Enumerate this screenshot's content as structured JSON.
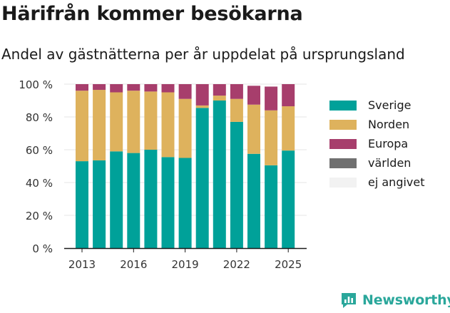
{
  "chart_data": {
    "type": "bar",
    "stacked": true,
    "title": "Härifrån kommer besökarna",
    "subtitle": "Andel av gästnätterna per år uppdelat på ursprungsland",
    "x": [
      2013,
      2014,
      2015,
      2016,
      2017,
      2018,
      2019,
      2020,
      2021,
      2022,
      2023,
      2024,
      2025
    ],
    "x_ticks": [
      "2013",
      "2016",
      "2019",
      "2022",
      "2025"
    ],
    "y_ticks": [
      "0 %",
      "20 %",
      "40 %",
      "60 %",
      "80 %",
      "100 %"
    ],
    "ylim": [
      0,
      100
    ],
    "grid": true,
    "legend_position": "right",
    "series": [
      {
        "name": "Sverige",
        "color": "#00a199",
        "values": [
          53,
          53.5,
          59,
          58,
          60,
          55.5,
          55,
          85.5,
          90,
          77,
          57.5,
          50.5,
          59.5
        ]
      },
      {
        "name": "Norden",
        "color": "#deb25d",
        "values": [
          43,
          43,
          36,
          38,
          35.5,
          39.5,
          36,
          1.5,
          3,
          14,
          30,
          33.5,
          27
        ]
      },
      {
        "name": "Europa",
        "color": "#a73e6c",
        "values": [
          4,
          3.5,
          5,
          4,
          4.5,
          5,
          9,
          13,
          7,
          9,
          11.5,
          14.5,
          13.5
        ]
      },
      {
        "name": "världen",
        "color": "#707070",
        "values": [
          0,
          0,
          0,
          0,
          0,
          0,
          0,
          0,
          0,
          0,
          0,
          0,
          0
        ]
      },
      {
        "name": "ej angivet",
        "color": "#f2f2f2",
        "values": [
          0,
          0,
          0,
          0,
          0,
          0,
          0,
          0,
          0,
          0,
          0,
          0,
          0
        ]
      }
    ]
  },
  "brand": {
    "name": "Newsworthy",
    "icon": "bar-chart-logo-icon",
    "color": "#2aa79b"
  }
}
